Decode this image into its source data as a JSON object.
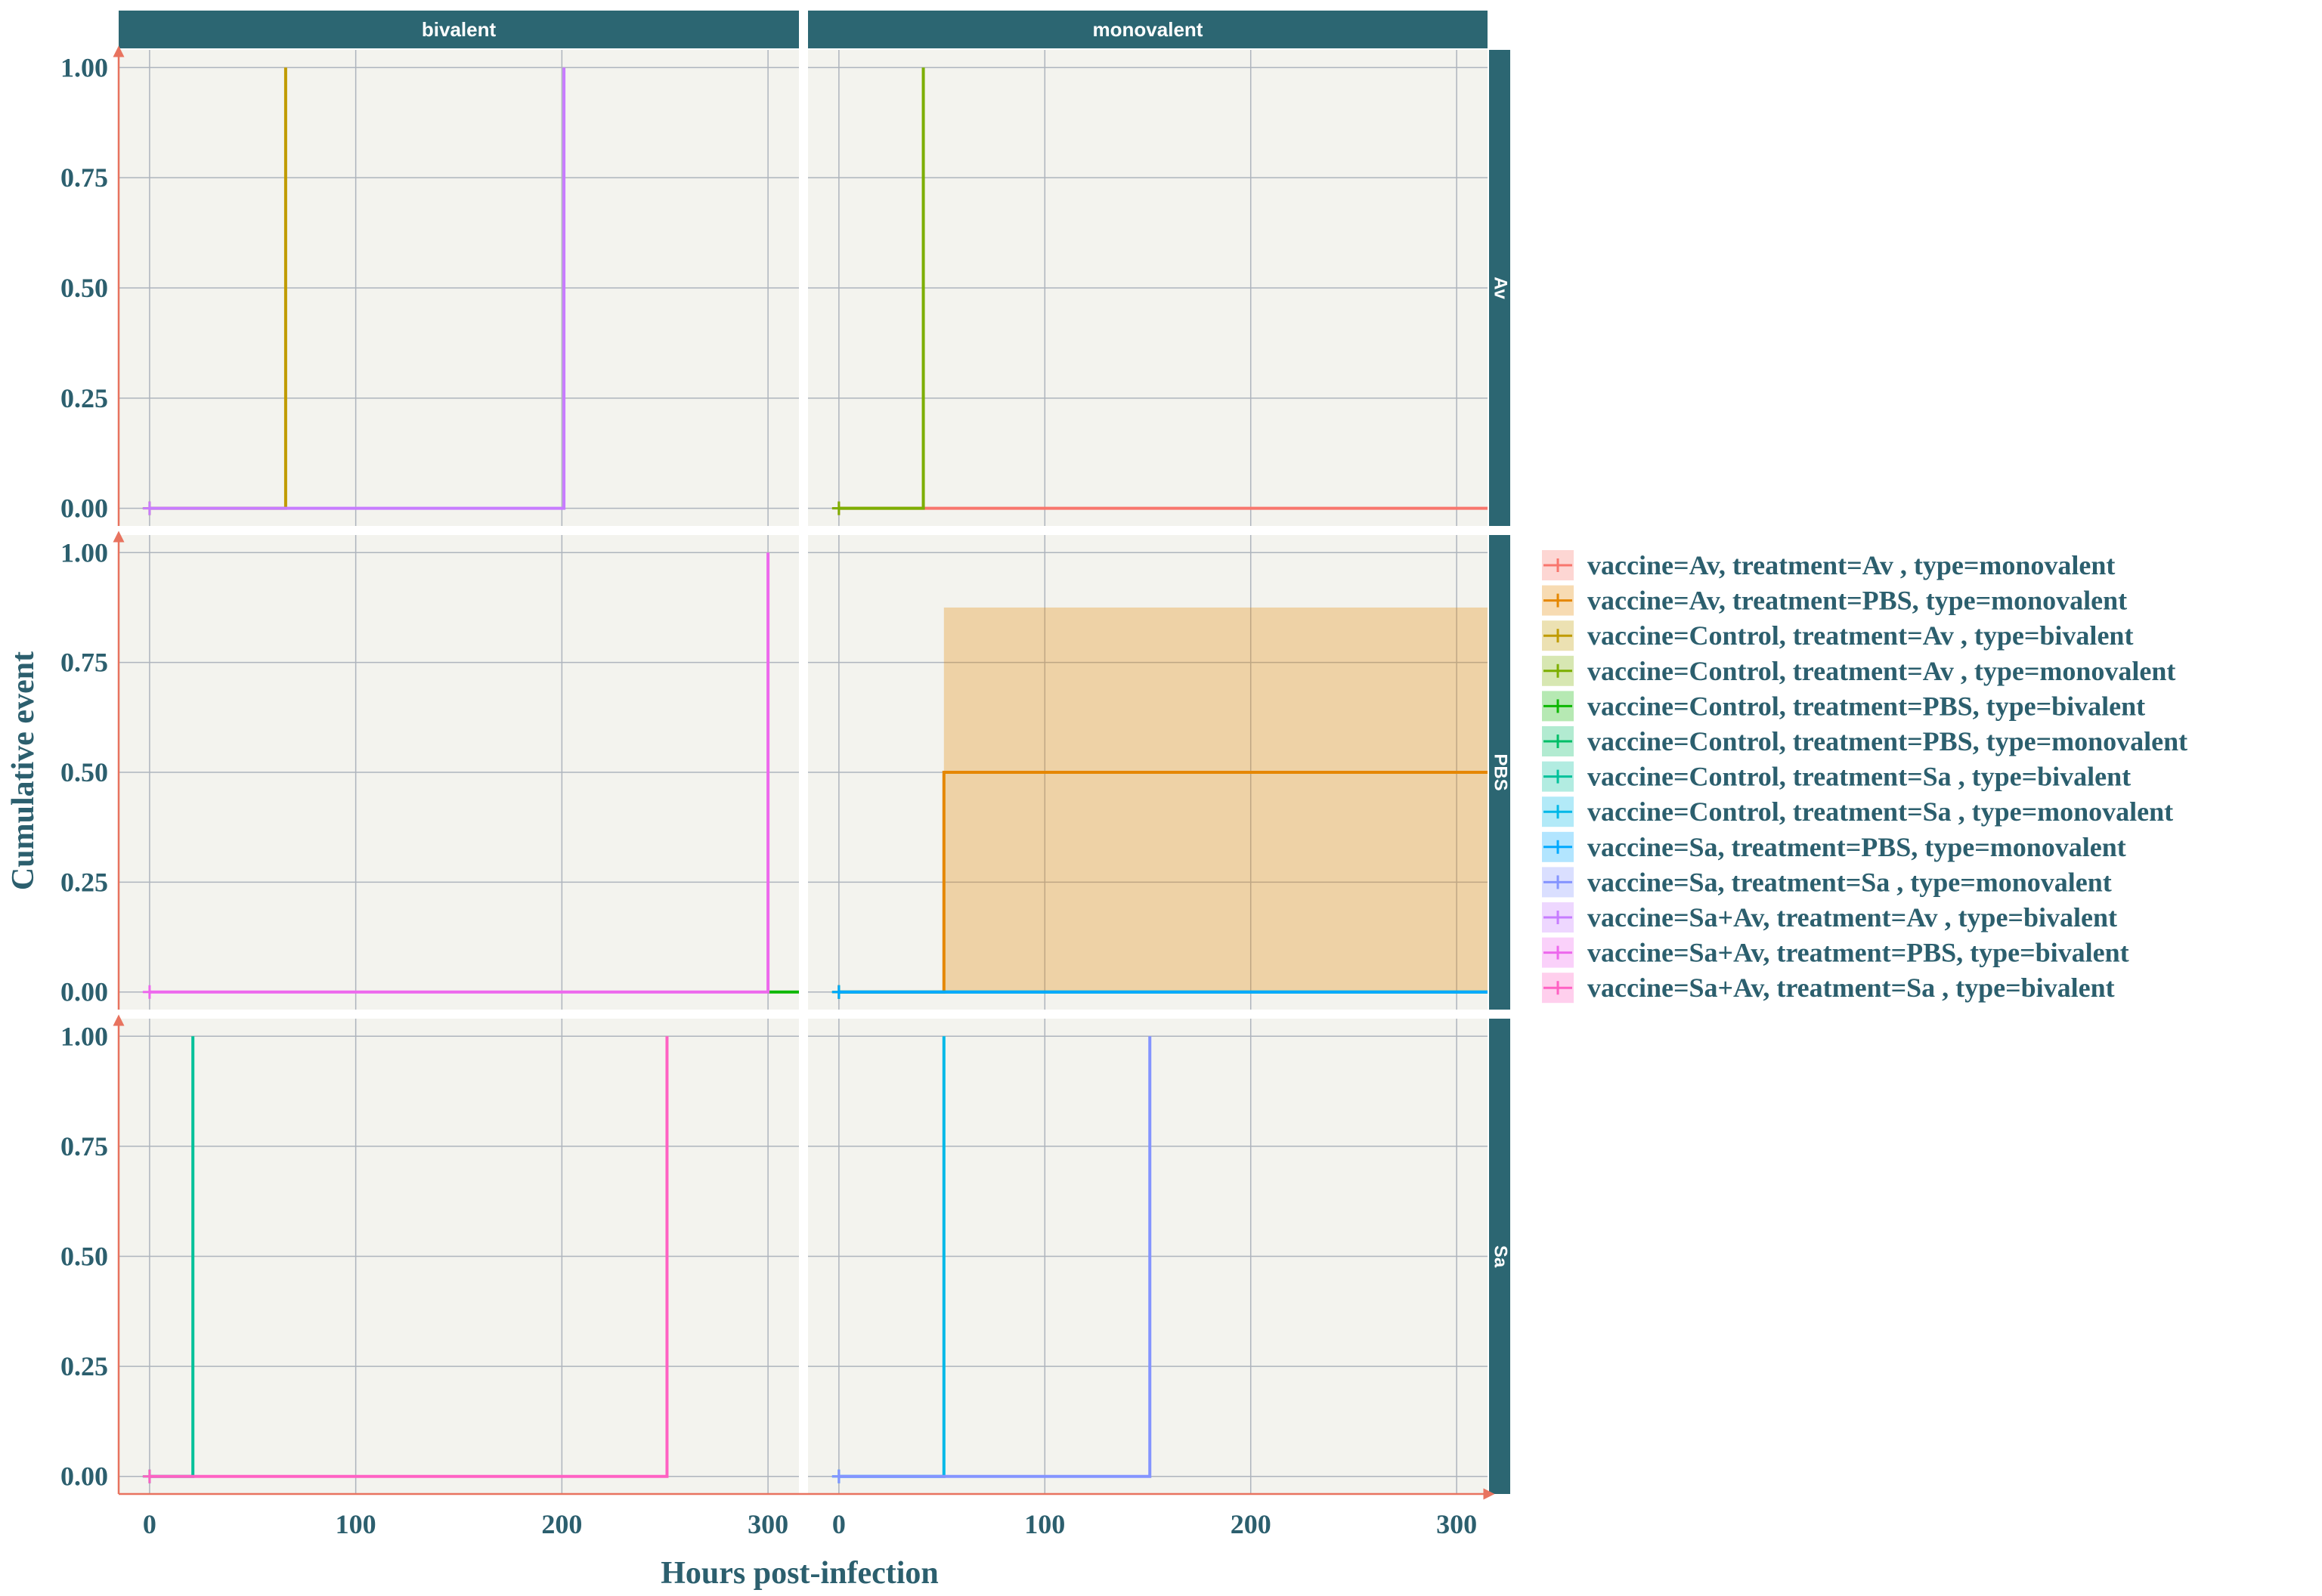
{
  "chart_data": {
    "type": "line",
    "xlabel": "Hours post-infection",
    "ylabel": "Cumulative event",
    "xlim": [
      -15,
      315
    ],
    "ylim": [
      -0.04,
      1.04
    ],
    "x_ticks": [
      0,
      100,
      200,
      300
    ],
    "y_ticks": [
      0.0,
      0.25,
      0.5,
      0.75,
      1.0
    ],
    "x_tick_labels": [
      "0",
      "100",
      "200",
      "300"
    ],
    "y_tick_labels": [
      "0.00",
      "0.25",
      "0.50",
      "0.75",
      "1.00"
    ],
    "grid": true,
    "legend_position": "right",
    "facet_columns": [
      "bivalent",
      "monovalent"
    ],
    "facet_rows": [
      "Av",
      "PBS",
      "Sa"
    ],
    "colors": {
      "panel_bg": "#f3f3ee",
      "grid": "#aeb4bd",
      "strip_bg": "#2c6672",
      "axis_arrow": "#e8735f",
      "text": "#2c5f6e"
    },
    "series": [
      {
        "name": "vaccine=Av, treatment=Av , type=monovalent",
        "color": "#f8766d",
        "row": "Av",
        "col": "monovalent",
        "x": [
          0,
          315
        ],
        "y": [
          0,
          0
        ]
      },
      {
        "name": "vaccine=Av, treatment=PBS, type=monovalent",
        "color": "#e58700",
        "row": "PBS",
        "col": "monovalent",
        "x": [
          0,
          51,
          51,
          315
        ],
        "y": [
          0,
          0,
          0.5,
          0.5
        ],
        "ci_x": [
          51,
          315
        ],
        "ci_lower": 0,
        "ci_upper": 0.875
      },
      {
        "name": "vaccine=Control, treatment=Av , type=bivalent",
        "color": "#c09b00",
        "row": "Av",
        "col": "bivalent",
        "x": [
          0,
          66,
          66
        ],
        "y": [
          0,
          0,
          1
        ]
      },
      {
        "name": "vaccine=Control, treatment=Av , type=monovalent",
        "color": "#7cae00",
        "row": "Av",
        "col": "monovalent",
        "x": [
          0,
          41,
          41
        ],
        "y": [
          0,
          0,
          1
        ]
      },
      {
        "name": "vaccine=Control, treatment=PBS, type=bivalent",
        "color": "#0cb702",
        "row": "PBS",
        "col": "bivalent",
        "x": [
          300,
          315
        ],
        "y": [
          0,
          0
        ]
      },
      {
        "name": "vaccine=Control, treatment=PBS, type=monovalent",
        "color": "#00be67",
        "row": "PBS",
        "col": "monovalent",
        "x": [
          0,
          315
        ],
        "y": [
          0,
          0
        ]
      },
      {
        "name": "vaccine=Control, treatment=Sa , type=bivalent",
        "color": "#00c19a",
        "row": "Sa",
        "col": "bivalent",
        "x": [
          0,
          21,
          21
        ],
        "y": [
          0,
          0,
          1
        ]
      },
      {
        "name": "vaccine=Control, treatment=Sa , type=monovalent",
        "color": "#00b8e7",
        "row": "Sa",
        "col": "monovalent",
        "x": [
          0,
          51,
          51
        ],
        "y": [
          0,
          0,
          1
        ]
      },
      {
        "name": "vaccine=Sa, treatment=PBS, type=monovalent",
        "color": "#00a9ff",
        "row": "PBS",
        "col": "monovalent",
        "x": [
          0,
          315
        ],
        "y": [
          0,
          0
        ]
      },
      {
        "name": "vaccine=Sa, treatment=Sa , type=monovalent",
        "color": "#8494ff",
        "row": "Sa",
        "col": "monovalent",
        "x": [
          0,
          151,
          151
        ],
        "y": [
          0,
          0,
          1
        ]
      },
      {
        "name": "vaccine=Sa+Av, treatment=Av , type=bivalent",
        "color": "#c77cff",
        "row": "Av",
        "col": "bivalent",
        "x": [
          0,
          201,
          201
        ],
        "y": [
          0,
          0,
          1
        ]
      },
      {
        "name": "vaccine=Sa+Av, treatment=PBS, type=bivalent",
        "color": "#ed68ed",
        "row": "PBS",
        "col": "bivalent",
        "x": [
          0,
          300,
          300
        ],
        "y": [
          0,
          0,
          1
        ]
      },
      {
        "name": "vaccine=Sa+Av, treatment=Sa , type=bivalent",
        "color": "#ff61c3",
        "row": "Sa",
        "col": "bivalent",
        "x": [
          0,
          251,
          251
        ],
        "y": [
          0,
          0,
          1
        ]
      }
    ]
  }
}
